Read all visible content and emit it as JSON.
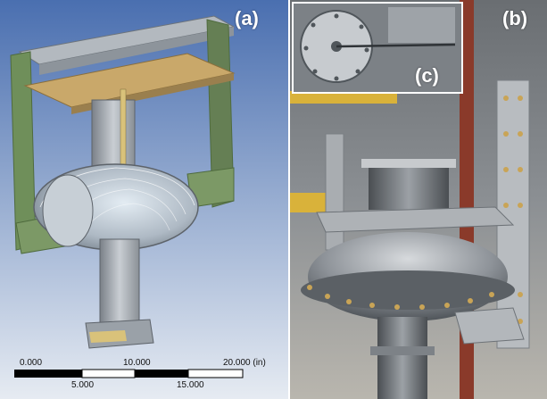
{
  "panels": {
    "a": {
      "label": "(a)",
      "scale_bar": {
        "top_ticks": [
          "0.000",
          "10.000",
          "20.000 (in)"
        ],
        "bottom_ticks": [
          "5.000",
          "15.000"
        ]
      }
    },
    "b": {
      "label": "(b)"
    },
    "c": {
      "label": "(c)"
    }
  },
  "colors": {
    "cad_background_top": "#4a6fb0",
    "cad_background_bottom": "#dbe3ee",
    "frame_green": "#6f8f5a",
    "frame_gray": "#a9b0b6",
    "inset_border": "#ffffff"
  }
}
